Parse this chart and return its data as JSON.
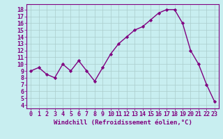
{
  "x": [
    0,
    1,
    2,
    3,
    4,
    5,
    6,
    7,
    8,
    9,
    10,
    11,
    12,
    13,
    14,
    15,
    16,
    17,
    18,
    19,
    20,
    21,
    22,
    23
  ],
  "y": [
    9,
    9.5,
    8.5,
    8,
    10,
    9,
    10.5,
    9,
    7.5,
    9.5,
    11.5,
    13,
    14,
    15,
    15.5,
    16.5,
    17.5,
    18,
    18,
    16,
    12,
    10,
    7,
    4.5
  ],
  "line_color": "#800080",
  "marker": "D",
  "marker_size": 2.2,
  "background_color": "#c8eef0",
  "grid_color": "#aacccc",
  "xlabel": "Windchill (Refroidissement éolien,°C)",
  "xtick_labels": [
    "0",
    "1",
    "2",
    "3",
    "4",
    "5",
    "6",
    "7",
    "8",
    "9",
    "10",
    "11",
    "12",
    "13",
    "14",
    "15",
    "16",
    "17",
    "18",
    "19",
    "20",
    "21",
    "22",
    "23"
  ],
  "ylabel_ticks": [
    4,
    5,
    6,
    7,
    8,
    9,
    10,
    11,
    12,
    13,
    14,
    15,
    16,
    17,
    18
  ],
  "xlim": [
    -0.5,
    23.5
  ],
  "ylim": [
    3.5,
    18.8
  ],
  "xlabel_fontsize": 6.5,
  "tick_fontsize": 6.0,
  "line_width": 1.0
}
